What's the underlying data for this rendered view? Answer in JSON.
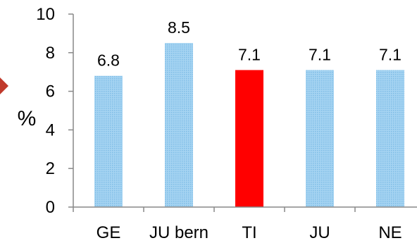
{
  "chart_data": {
    "type": "bar",
    "title": "",
    "xlabel": "",
    "ylabel": "%",
    "categories": [
      "GE",
      "JU bern",
      "TI",
      "JU",
      "NE"
    ],
    "values": [
      6.8,
      8.5,
      7.1,
      7.1,
      7.1
    ],
    "data_labels": [
      "6.8",
      "8.5",
      "7.1",
      "7.1",
      "7.1"
    ],
    "highlight_category": "TI",
    "ylim": [
      0,
      10
    ],
    "yticks": [
      0,
      2,
      4,
      6,
      8,
      10
    ],
    "grid": false,
    "legend": "none",
    "colors": {
      "bar": "#a6d4f2",
      "bar_pattern": "#7fbde6",
      "highlight": "#ff0000",
      "axis": "#888888",
      "marker": "#c0392b"
    }
  }
}
